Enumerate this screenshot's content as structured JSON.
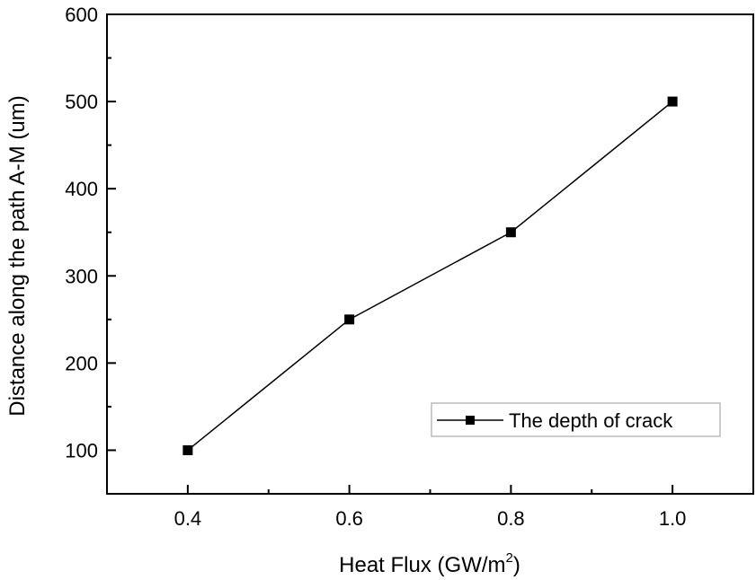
{
  "chart_data": {
    "type": "line",
    "xlabel": "Heat Flux (GW/m",
    "xlabel_sup": "2",
    "xlabel_end": ")",
    "ylabel": "Distance along the path A-M (um)",
    "xlim": [
      0.3,
      1.1
    ],
    "ylim": [
      50,
      600
    ],
    "x_ticks": [
      0.4,
      0.6,
      0.8,
      1.0
    ],
    "x_tick_labels": [
      "0.4",
      "0.6",
      "0.8",
      "1.0"
    ],
    "x_minor_ticks": [
      0.3,
      0.5,
      0.7,
      0.9,
      1.1
    ],
    "y_ticks": [
      100,
      200,
      300,
      400,
      500,
      600
    ],
    "y_tick_labels": [
      "100",
      "200",
      "300",
      "400",
      "500",
      "600"
    ],
    "y_minor_ticks": [
      150,
      250,
      350,
      450,
      550
    ],
    "grid": false,
    "legend_position": "lower-right",
    "series": [
      {
        "name": "The depth of crack",
        "marker": "square",
        "color": "#000000",
        "x": [
          0.4,
          0.6,
          0.8,
          1.0
        ],
        "y": [
          100,
          250,
          350,
          500
        ]
      }
    ]
  }
}
